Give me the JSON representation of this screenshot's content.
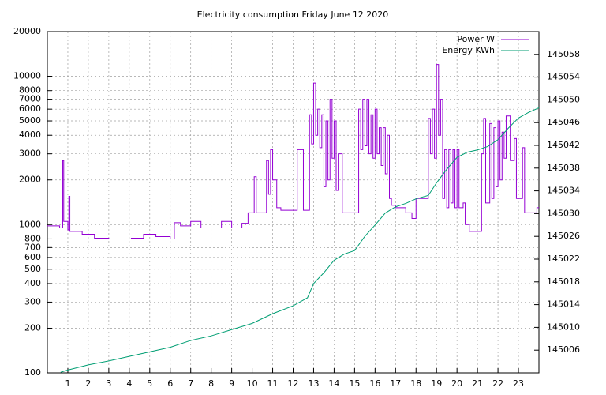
{
  "chart_data": {
    "type": "line",
    "title": "Electricity consumption Friday June 12 2020",
    "xlim": [
      0,
      24
    ],
    "xticks": [
      1,
      2,
      3,
      4,
      5,
      6,
      7,
      8,
      9,
      10,
      11,
      12,
      13,
      14,
      15,
      16,
      17,
      18,
      19,
      20,
      21,
      22,
      23
    ],
    "ylim": [
      100,
      20000
    ],
    "ylog": true,
    "yticks": [
      100,
      200,
      300,
      400,
      500,
      600,
      700,
      800,
      1000,
      2000,
      3000,
      4000,
      5000,
      6000,
      7000,
      8000,
      10000,
      20000
    ],
    "y2lim": [
      145002,
      145062
    ],
    "y2ticks": [
      145006,
      145010,
      145014,
      145018,
      145022,
      145026,
      145030,
      145034,
      145038,
      145042,
      145046,
      145050,
      145054,
      145058
    ],
    "grid": true,
    "legend": "top-right",
    "series": [
      {
        "name": "Power W",
        "color": "#9400d3",
        "steps": true,
        "x": [
          0,
          0.6,
          0.75,
          0.8,
          1.0,
          1.05,
          1.1,
          1.7,
          2.3,
          3.0,
          4.0,
          4.1,
          4.7,
          5.3,
          6.0,
          6.2,
          6.5,
          7.0,
          7.5,
          8.5,
          9.0,
          9.5,
          9.8,
          10.1,
          10.2,
          10.7,
          10.8,
          10.9,
          11.0,
          11.2,
          11.4,
          12.0,
          12.2,
          12.5,
          12.8,
          12.9,
          13.0,
          13.1,
          13.2,
          13.3,
          13.4,
          13.5,
          13.6,
          13.7,
          13.8,
          13.9,
          14.0,
          14.1,
          14.2,
          14.4,
          15.0,
          15.2,
          15.3,
          15.4,
          15.5,
          15.6,
          15.7,
          15.8,
          15.9,
          16.0,
          16.1,
          16.2,
          16.3,
          16.4,
          16.5,
          16.6,
          16.7,
          16.8,
          17.0,
          17.5,
          17.8,
          18.0,
          18.6,
          18.7,
          18.8,
          18.9,
          19.0,
          19.1,
          19.2,
          19.3,
          19.4,
          19.5,
          19.6,
          19.7,
          19.8,
          19.9,
          20.0,
          20.1,
          20.3,
          20.4,
          20.6,
          20.8,
          21.0,
          21.2,
          21.3,
          21.4,
          21.6,
          21.7,
          21.8,
          21.9,
          22.0,
          22.1,
          22.2,
          22.3,
          22.4,
          22.6,
          22.8,
          22.9,
          23.2,
          23.3,
          23.9,
          24
        ],
        "values": [
          980,
          950,
          2700,
          1050,
          920,
          1550,
          900,
          860,
          810,
          800,
          800,
          810,
          860,
          830,
          800,
          1030,
          980,
          1050,
          950,
          1050,
          950,
          1020,
          1200,
          2100,
          1200,
          2700,
          1600,
          3200,
          2000,
          1300,
          1250,
          1250,
          3200,
          1250,
          5500,
          3500,
          9000,
          4000,
          6000,
          3300,
          5500,
          1800,
          5000,
          2000,
          7000,
          2800,
          5000,
          1700,
          3000,
          1200,
          1200,
          6000,
          3200,
          7000,
          3400,
          7000,
          3000,
          5500,
          2800,
          6000,
          3000,
          4500,
          2500,
          4500,
          2200,
          4000,
          1500,
          1350,
          1300,
          1200,
          1100,
          1500,
          5200,
          3000,
          6000,
          2800,
          12000,
          4000,
          7000,
          1500,
          3200,
          1300,
          3200,
          1400,
          3200,
          1300,
          3200,
          1300,
          1400,
          1000,
          900,
          900,
          900,
          3000,
          5200,
          1400,
          4800,
          1500,
          4500,
          1800,
          5000,
          2000,
          4200,
          2800,
          5400,
          2700,
          3800,
          1500,
          3300,
          1200,
          1300,
          1300
        ]
      },
      {
        "name": "Energy KWh",
        "color": "#009e73",
        "axis": "y2",
        "x": [
          0.65,
          1,
          2,
          3,
          4,
          5,
          6,
          7,
          8,
          9,
          10,
          11,
          12,
          12.7,
          13,
          13.5,
          14,
          14.5,
          15,
          15.5,
          16,
          16.5,
          17,
          17.5,
          18,
          18.6,
          19,
          19.5,
          20,
          20.5,
          21,
          21.5,
          22,
          22.5,
          23,
          23.5,
          24
        ],
        "values": [
          145002.1,
          145002.5,
          145003.4,
          145004.1,
          145004.9,
          145005.7,
          145006.5,
          145007.7,
          145008.5,
          145009.6,
          145010.7,
          145012.4,
          145013.8,
          145015.2,
          145017.7,
          145019.6,
          145021.8,
          145022.9,
          145023.5,
          145026,
          145028,
          145030.1,
          145031.2,
          145031.8,
          145032.6,
          145033.2,
          145035.4,
          145037.8,
          145039.9,
          145040.8,
          145041.2,
          145041.8,
          145043,
          145045,
          145046.8,
          145047.8,
          145048.6
        ]
      }
    ]
  }
}
